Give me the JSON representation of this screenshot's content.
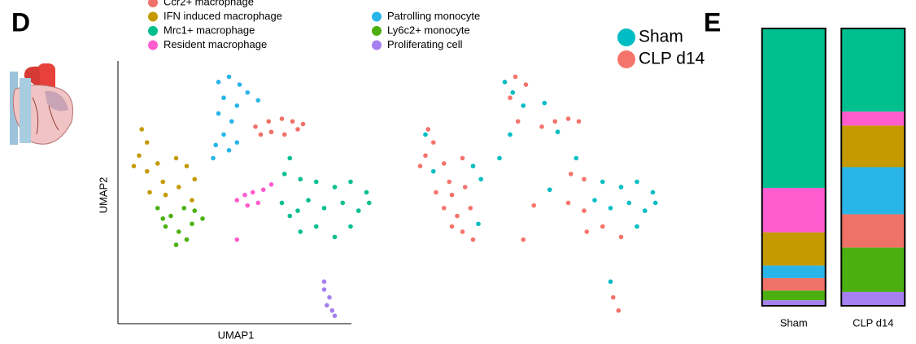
{
  "chart_data": [
    {
      "type": "scatter",
      "panel_label": "D",
      "x_label": "UMAP1",
      "y_label": "UMAP2",
      "legend": "top",
      "xlim": [
        0,
        100
      ],
      "ylim": [
        0,
        100
      ],
      "series": [
        {
          "name": "Ccr2+ macrophage",
          "color": "#f07167",
          "x": [
            52,
            57,
            62,
            66,
            68,
            58,
            63,
            54,
            70
          ],
          "y": [
            75,
            77,
            78,
            77,
            74,
            73,
            72,
            72,
            76
          ]
        },
        {
          "name": "IFN induced macrophage",
          "color": "#c49a00",
          "x": [
            9,
            11,
            8,
            6,
            11,
            15,
            22,
            26,
            17,
            23,
            29,
            12,
            18,
            28
          ],
          "y": [
            74,
            69,
            64,
            60,
            58,
            61,
            63,
            60,
            54,
            52,
            55,
            50,
            49,
            47
          ]
        },
        {
          "name": "Mrc1+ macrophage",
          "color": "#00bf8f",
          "x": [
            65,
            63,
            69,
            75,
            82,
            88,
            94,
            62,
            68,
            72,
            78,
            85,
            91,
            75,
            82,
            88,
            69,
            65,
            95
          ],
          "y": [
            63,
            57,
            55,
            54,
            52,
            54,
            50,
            46,
            43,
            47,
            44,
            46,
            43,
            37,
            33,
            37,
            35,
            41,
            46
          ]
        },
        {
          "name": "Resident macrophage",
          "color": "#ff5ccf",
          "x": [
            45,
            48,
            51,
            55,
            53,
            49,
            45,
            58
          ],
          "y": [
            47,
            49,
            50,
            51,
            46,
            45,
            32,
            53
          ]
        },
        {
          "name": "Patrolling monocyte",
          "color": "#29b5e8",
          "x": [
            38,
            42,
            46,
            49,
            53,
            40,
            45,
            38,
            43,
            40,
            37,
            42,
            45,
            36
          ],
          "y": [
            92,
            94,
            91,
            88,
            85,
            86,
            83,
            80,
            77,
            72,
            68,
            66,
            69,
            63
          ]
        },
        {
          "name": "Ly6c2+ monocyte",
          "color": "#4caf10",
          "x": [
            15,
            20,
            25,
            29,
            18,
            23,
            28,
            22,
            26,
            32,
            17
          ],
          "y": [
            44,
            41,
            44,
            43,
            37,
            35,
            38,
            30,
            32,
            40,
            40
          ]
        },
        {
          "name": "Proliferating cell",
          "color": "#a680f0",
          "x": [
            78,
            78,
            80,
            79,
            81,
            82
          ],
          "y": [
            16,
            13,
            10,
            7,
            5,
            3
          ]
        }
      ]
    },
    {
      "type": "scatter",
      "legend": "upper right",
      "xlim": [
        0,
        100
      ],
      "ylim": [
        0,
        100
      ],
      "series": [
        {
          "name": "Sham",
          "color": "#00bdc4",
          "x": [
            8,
            11,
            26,
            29,
            28,
            38,
            41,
            45,
            40,
            53,
            58,
            65,
            75,
            82,
            88,
            94,
            85,
            91,
            88,
            78,
            72,
            95,
            55,
            78,
            36
          ],
          "y": [
            72,
            58,
            60,
            55,
            38,
            92,
            88,
            83,
            72,
            84,
            73,
            63,
            54,
            52,
            54,
            50,
            46,
            43,
            37,
            44,
            47,
            46,
            51,
            16,
            63
          ]
        },
        {
          "name": "CLP d14",
          "color": "#f4746b",
          "x": [
            9,
            11,
            8,
            6,
            15,
            22,
            17,
            23,
            12,
            18,
            15,
            20,
            25,
            18,
            22,
            26,
            42,
            46,
            40,
            43,
            52,
            57,
            62,
            66,
            63,
            68,
            62,
            68,
            75,
            69,
            82,
            79,
            81,
            45,
            49
          ],
          "y": [
            74,
            69,
            64,
            60,
            61,
            63,
            54,
            52,
            50,
            49,
            44,
            41,
            44,
            37,
            35,
            32,
            94,
            91,
            86,
            77,
            75,
            77,
            78,
            77,
            57,
            43,
            46,
            55,
            37,
            35,
            33,
            10,
            5,
            32,
            45
          ]
        }
      ]
    },
    {
      "type": "stacked_bar",
      "panel_label": "E",
      "categories": [
        "Sham",
        "CLP d14"
      ],
      "ylim": [
        0,
        100
      ],
      "series": [
        {
          "color": "#a680f0",
          "values": [
            2,
            5
          ]
        },
        {
          "color": "#4caf10",
          "values": [
            3.5,
            16
          ]
        },
        {
          "color": "#f07167",
          "values": [
            4.5,
            12
          ]
        },
        {
          "color": "#29b5e8",
          "values": [
            4.5,
            17
          ]
        },
        {
          "color": "#c49a00",
          "values": [
            12,
            15
          ]
        },
        {
          "color": "#ff5ccf",
          "values": [
            16,
            5
          ]
        },
        {
          "color": "#00bf8f",
          "values": [
            57.5,
            30
          ]
        }
      ]
    }
  ]
}
